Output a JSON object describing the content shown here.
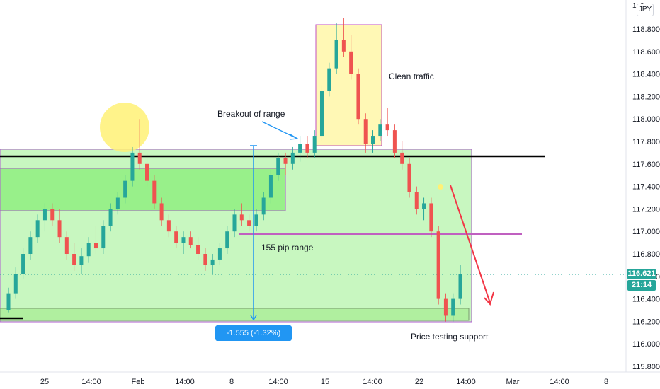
{
  "currency_label": "JPY",
  "last_price": "116.621",
  "countdown": "21:14",
  "top_axis_clip": "1",
  "top_axis_clip2": "0",
  "colors": {
    "up": "#26a69a",
    "down": "#ef5350",
    "zone_fill": "#b7f5a8",
    "zone_border": "#9c27b0",
    "highlight_yellow": "#fff59d",
    "arrow_blue": "#2196f3",
    "arrow_red": "#f23645",
    "support_line": "#000000"
  },
  "annotations": {
    "breakout": "Breakout of range",
    "clean_traffic": "Clean traffic",
    "pip_range": "155 pip range",
    "price_testing": "Price testing support",
    "range_measure": "-1.555 (-1.32%) -155.5"
  },
  "chart_data": {
    "type": "candlestick",
    "title": "",
    "x_ticks": [
      "25",
      "14:00",
      "Feb",
      "14:00",
      "8",
      "14:00",
      "15",
      "14:00",
      "22",
      "14:00",
      "Mar",
      "14:00",
      "8"
    ],
    "y_ticks": [
      "118.800",
      "118.600",
      "118.400",
      "118.200",
      "118.000",
      "117.800",
      "117.600",
      "117.400",
      "117.200",
      "117.000",
      "116.800",
      "116.600",
      "116.400",
      "116.200",
      "116.000",
      "115.800"
    ],
    "ylim": [
      115.8,
      118.9
    ],
    "levels": {
      "resistance": 117.67,
      "mid_range": 116.98,
      "support": 116.2
    },
    "range_pips": 155.5,
    "range_change": -1.555,
    "range_change_pct": -1.32,
    "candles_ohlc": [
      [
        116.3,
        116.5,
        116.28,
        116.45
      ],
      [
        116.45,
        116.68,
        116.4,
        116.62
      ],
      [
        116.62,
        116.85,
        116.58,
        116.8
      ],
      [
        116.8,
        117.0,
        116.75,
        116.95
      ],
      [
        116.95,
        117.15,
        116.9,
        117.1
      ],
      [
        117.1,
        117.25,
        117.0,
        117.2
      ],
      [
        117.2,
        117.25,
        117.05,
        117.1
      ],
      [
        117.1,
        117.2,
        116.9,
        116.95
      ],
      [
        116.95,
        117.0,
        116.75,
        116.8
      ],
      [
        116.8,
        116.9,
        116.65,
        116.7
      ],
      [
        116.7,
        116.85,
        116.62,
        116.78
      ],
      [
        116.78,
        116.95,
        116.72,
        116.9
      ],
      [
        116.9,
        117.05,
        116.8,
        116.85
      ],
      [
        116.85,
        117.1,
        116.8,
        117.05
      ],
      [
        117.05,
        117.25,
        117.0,
        117.2
      ],
      [
        117.2,
        117.35,
        117.15,
        117.3
      ],
      [
        117.3,
        117.5,
        117.25,
        117.45
      ],
      [
        117.45,
        117.75,
        117.4,
        117.7
      ],
      [
        117.7,
        118.0,
        117.55,
        117.6
      ],
      [
        117.6,
        117.7,
        117.4,
        117.45
      ],
      [
        117.45,
        117.5,
        117.2,
        117.25
      ],
      [
        117.25,
        117.3,
        117.05,
        117.1
      ],
      [
        117.1,
        117.15,
        116.95,
        117.0
      ],
      [
        117.0,
        117.05,
        116.85,
        116.9
      ],
      [
        116.9,
        117.0,
        116.8,
        116.95
      ],
      [
        116.95,
        117.0,
        116.85,
        116.88
      ],
      [
        116.88,
        116.95,
        116.75,
        116.8
      ],
      [
        116.8,
        116.85,
        116.65,
        116.7
      ],
      [
        116.7,
        116.8,
        116.62,
        116.75
      ],
      [
        116.75,
        116.9,
        116.7,
        116.85
      ],
      [
        116.85,
        117.05,
        116.8,
        117.0
      ],
      [
        117.0,
        117.2,
        116.95,
        117.15
      ],
      [
        117.15,
        117.25,
        117.05,
        117.1
      ],
      [
        117.1,
        117.15,
        117.0,
        117.05
      ],
      [
        117.05,
        117.2,
        117.0,
        117.15
      ],
      [
        117.15,
        117.35,
        117.1,
        117.3
      ],
      [
        117.3,
        117.55,
        117.25,
        117.5
      ],
      [
        117.5,
        117.7,
        117.45,
        117.65
      ],
      [
        117.65,
        117.7,
        117.5,
        117.6
      ],
      [
        117.6,
        117.75,
        117.55,
        117.7
      ],
      [
        117.7,
        117.85,
        117.62,
        117.78
      ],
      [
        117.78,
        117.85,
        117.65,
        117.7
      ],
      [
        117.7,
        117.9,
        117.65,
        117.85
      ],
      [
        117.85,
        118.3,
        117.8,
        118.25
      ],
      [
        118.25,
        118.5,
        118.2,
        118.45
      ],
      [
        118.45,
        118.85,
        118.4,
        118.7
      ],
      [
        118.7,
        118.9,
        118.55,
        118.6
      ],
      [
        118.6,
        118.75,
        118.35,
        118.4
      ],
      [
        118.4,
        118.45,
        117.95,
        118.0
      ],
      [
        118.0,
        118.05,
        117.7,
        117.78
      ],
      [
        117.78,
        117.9,
        117.7,
        117.85
      ],
      [
        117.85,
        118.0,
        117.8,
        117.95
      ],
      [
        117.95,
        118.1,
        117.85,
        117.9
      ],
      [
        117.9,
        117.95,
        117.65,
        117.7
      ],
      [
        117.7,
        117.8,
        117.55,
        117.6
      ],
      [
        117.6,
        117.65,
        117.3,
        117.35
      ],
      [
        117.35,
        117.4,
        117.15,
        117.2
      ],
      [
        117.2,
        117.3,
        117.1,
        117.25
      ],
      [
        117.25,
        117.3,
        116.95,
        117.0
      ],
      [
        117.0,
        117.05,
        116.35,
        116.4
      ],
      [
        116.4,
        116.45,
        116.2,
        116.25
      ],
      [
        116.25,
        116.45,
        116.2,
        116.4
      ],
      [
        116.4,
        116.7,
        116.35,
        116.62
      ]
    ]
  }
}
